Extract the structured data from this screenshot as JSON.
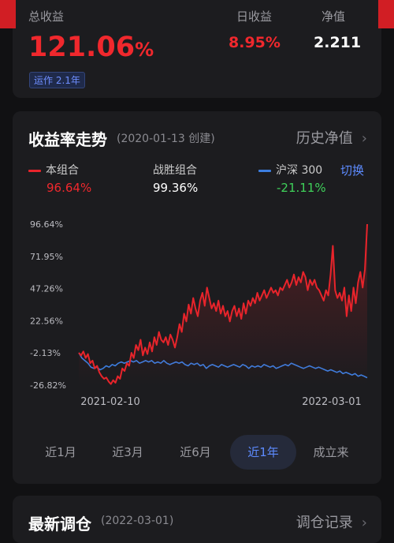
{
  "summary": {
    "total_label": "总收益",
    "total_value": "121.06",
    "total_unit": "%",
    "run_tag": "运作 2.1年",
    "daily_label": "日收益",
    "daily_value": "8.95%",
    "nav_label": "净值",
    "nav_value": "2.211"
  },
  "chart_card": {
    "title": "收益率走势",
    "created": "(2020-01-13 创建)",
    "history_link": "历史净值",
    "switch_label": "切换",
    "legend": [
      {
        "name": "本组合",
        "value": "96.64%",
        "color": "#e8242b",
        "value_color": "#f0282d"
      },
      {
        "name": "战胜组合",
        "value": "99.36%",
        "color": "",
        "value_color": "#ffffff"
      },
      {
        "name": "沪深 300",
        "value": "-21.11%",
        "color": "#3c7ee0",
        "value_color": "#3fd15a"
      }
    ],
    "range_tabs": [
      "近1月",
      "近3月",
      "近6月",
      "近1年",
      "成立来"
    ],
    "active_tab": "近1年"
  },
  "chart_data": {
    "type": "line",
    "x_start": "2021-02-10",
    "x_end": "2022-03-01",
    "y_ticks": [
      "96.64%",
      "71.95%",
      "47.26%",
      "22.56%",
      "-2.13%",
      "-26.82%"
    ],
    "y_tick_values": [
      96.64,
      71.95,
      47.26,
      22.56,
      -2.13,
      -26.82
    ],
    "ylim": [
      -26.82,
      96.64
    ],
    "grid": false,
    "series": [
      {
        "name": "本组合",
        "color": "#e8242b",
        "values": [
          -2,
          -4,
          -1,
          -6,
          -3,
          -10,
          -8,
          -14,
          -12,
          -17,
          -20,
          -22,
          -21,
          -24,
          -26,
          -23,
          -25,
          -20,
          -22,
          -14,
          -16,
          -10,
          -12,
          -2,
          -6,
          4,
          0,
          8,
          -4,
          2,
          -3,
          6,
          -1,
          10,
          4,
          14,
          8,
          6,
          10,
          4,
          12,
          8,
          2,
          10,
          20,
          14,
          28,
          22,
          35,
          28,
          40,
          32,
          26,
          38,
          44,
          34,
          48,
          40,
          32,
          36,
          30,
          38,
          28,
          34,
          26,
          30,
          22,
          30,
          34,
          26,
          32,
          24,
          36,
          28,
          38,
          34,
          40,
          36,
          44,
          38,
          42,
          46,
          40,
          44,
          48,
          44,
          46,
          42,
          48,
          46,
          50,
          54,
          48,
          52,
          58,
          50,
          56,
          52,
          60,
          56,
          46,
          54,
          50,
          54,
          48,
          46,
          42,
          38,
          46,
          42,
          58,
          80,
          46,
          40,
          44,
          38,
          48,
          26,
          42,
          30,
          48,
          36,
          52,
          60,
          48,
          62,
          96.64
        ]
      },
      {
        "name": "沪深 300",
        "color": "#3c7ee0",
        "values": [
          -2,
          -6,
          -8,
          -10,
          -13,
          -14,
          -13,
          -15,
          -14,
          -12,
          -13,
          -11,
          -12,
          -10,
          -9,
          -10,
          -9,
          -8,
          -9,
          -8,
          -10,
          -9,
          -8,
          -9,
          -8,
          -10,
          -9,
          -10,
          -8,
          -10,
          -11,
          -10,
          -9,
          -10,
          -9,
          -11,
          -12,
          -10,
          -11,
          -10,
          -12,
          -11,
          -14,
          -12,
          -11,
          -12,
          -13,
          -11,
          -12,
          -13,
          -12,
          -11,
          -12,
          -13,
          -11,
          -12,
          -14,
          -12,
          -13,
          -12,
          -13,
          -11,
          -12,
          -13,
          -12,
          -14,
          -13,
          -12,
          -11,
          -12,
          -10,
          -11,
          -12,
          -13,
          -14,
          -13,
          -12,
          -13,
          -14,
          -13,
          -14,
          -15,
          -16,
          -15,
          -16,
          -17,
          -16,
          -18,
          -17,
          -18,
          -19,
          -18,
          -20,
          -19,
          -20,
          -21.11
        ]
      }
    ]
  },
  "bottom_card": {
    "title": "最新调仓",
    "date": "(2022-03-01)",
    "link": "调仓记录"
  }
}
